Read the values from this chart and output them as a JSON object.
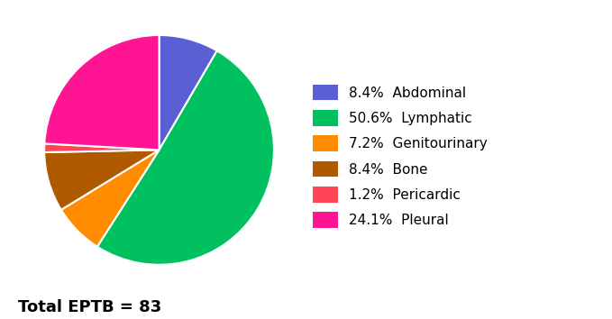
{
  "slices": [
    {
      "label": "Abdominal",
      "pct": 8.4,
      "color": "#5B5FD4"
    },
    {
      "label": "Lymphatic",
      "pct": 50.6,
      "color": "#00C060"
    },
    {
      "label": "Genitourinary",
      "pct": 7.2,
      "color": "#FF8C00"
    },
    {
      "label": "Bone",
      "pct": 8.4,
      "color": "#B05A00"
    },
    {
      "label": "Pericardic",
      "pct": 1.2,
      "color": "#FF4455"
    },
    {
      "label": "Pleural",
      "pct": 24.1,
      "color": "#FF1493"
    }
  ],
  "annotation": "Total EPTB = 83",
  "annotation_fontsize": 13,
  "legend_fontsize": 11,
  "startangle": 90,
  "background_color": "#ffffff",
  "wedge_linewidth": 1.5,
  "wedge_linecolor": "white"
}
